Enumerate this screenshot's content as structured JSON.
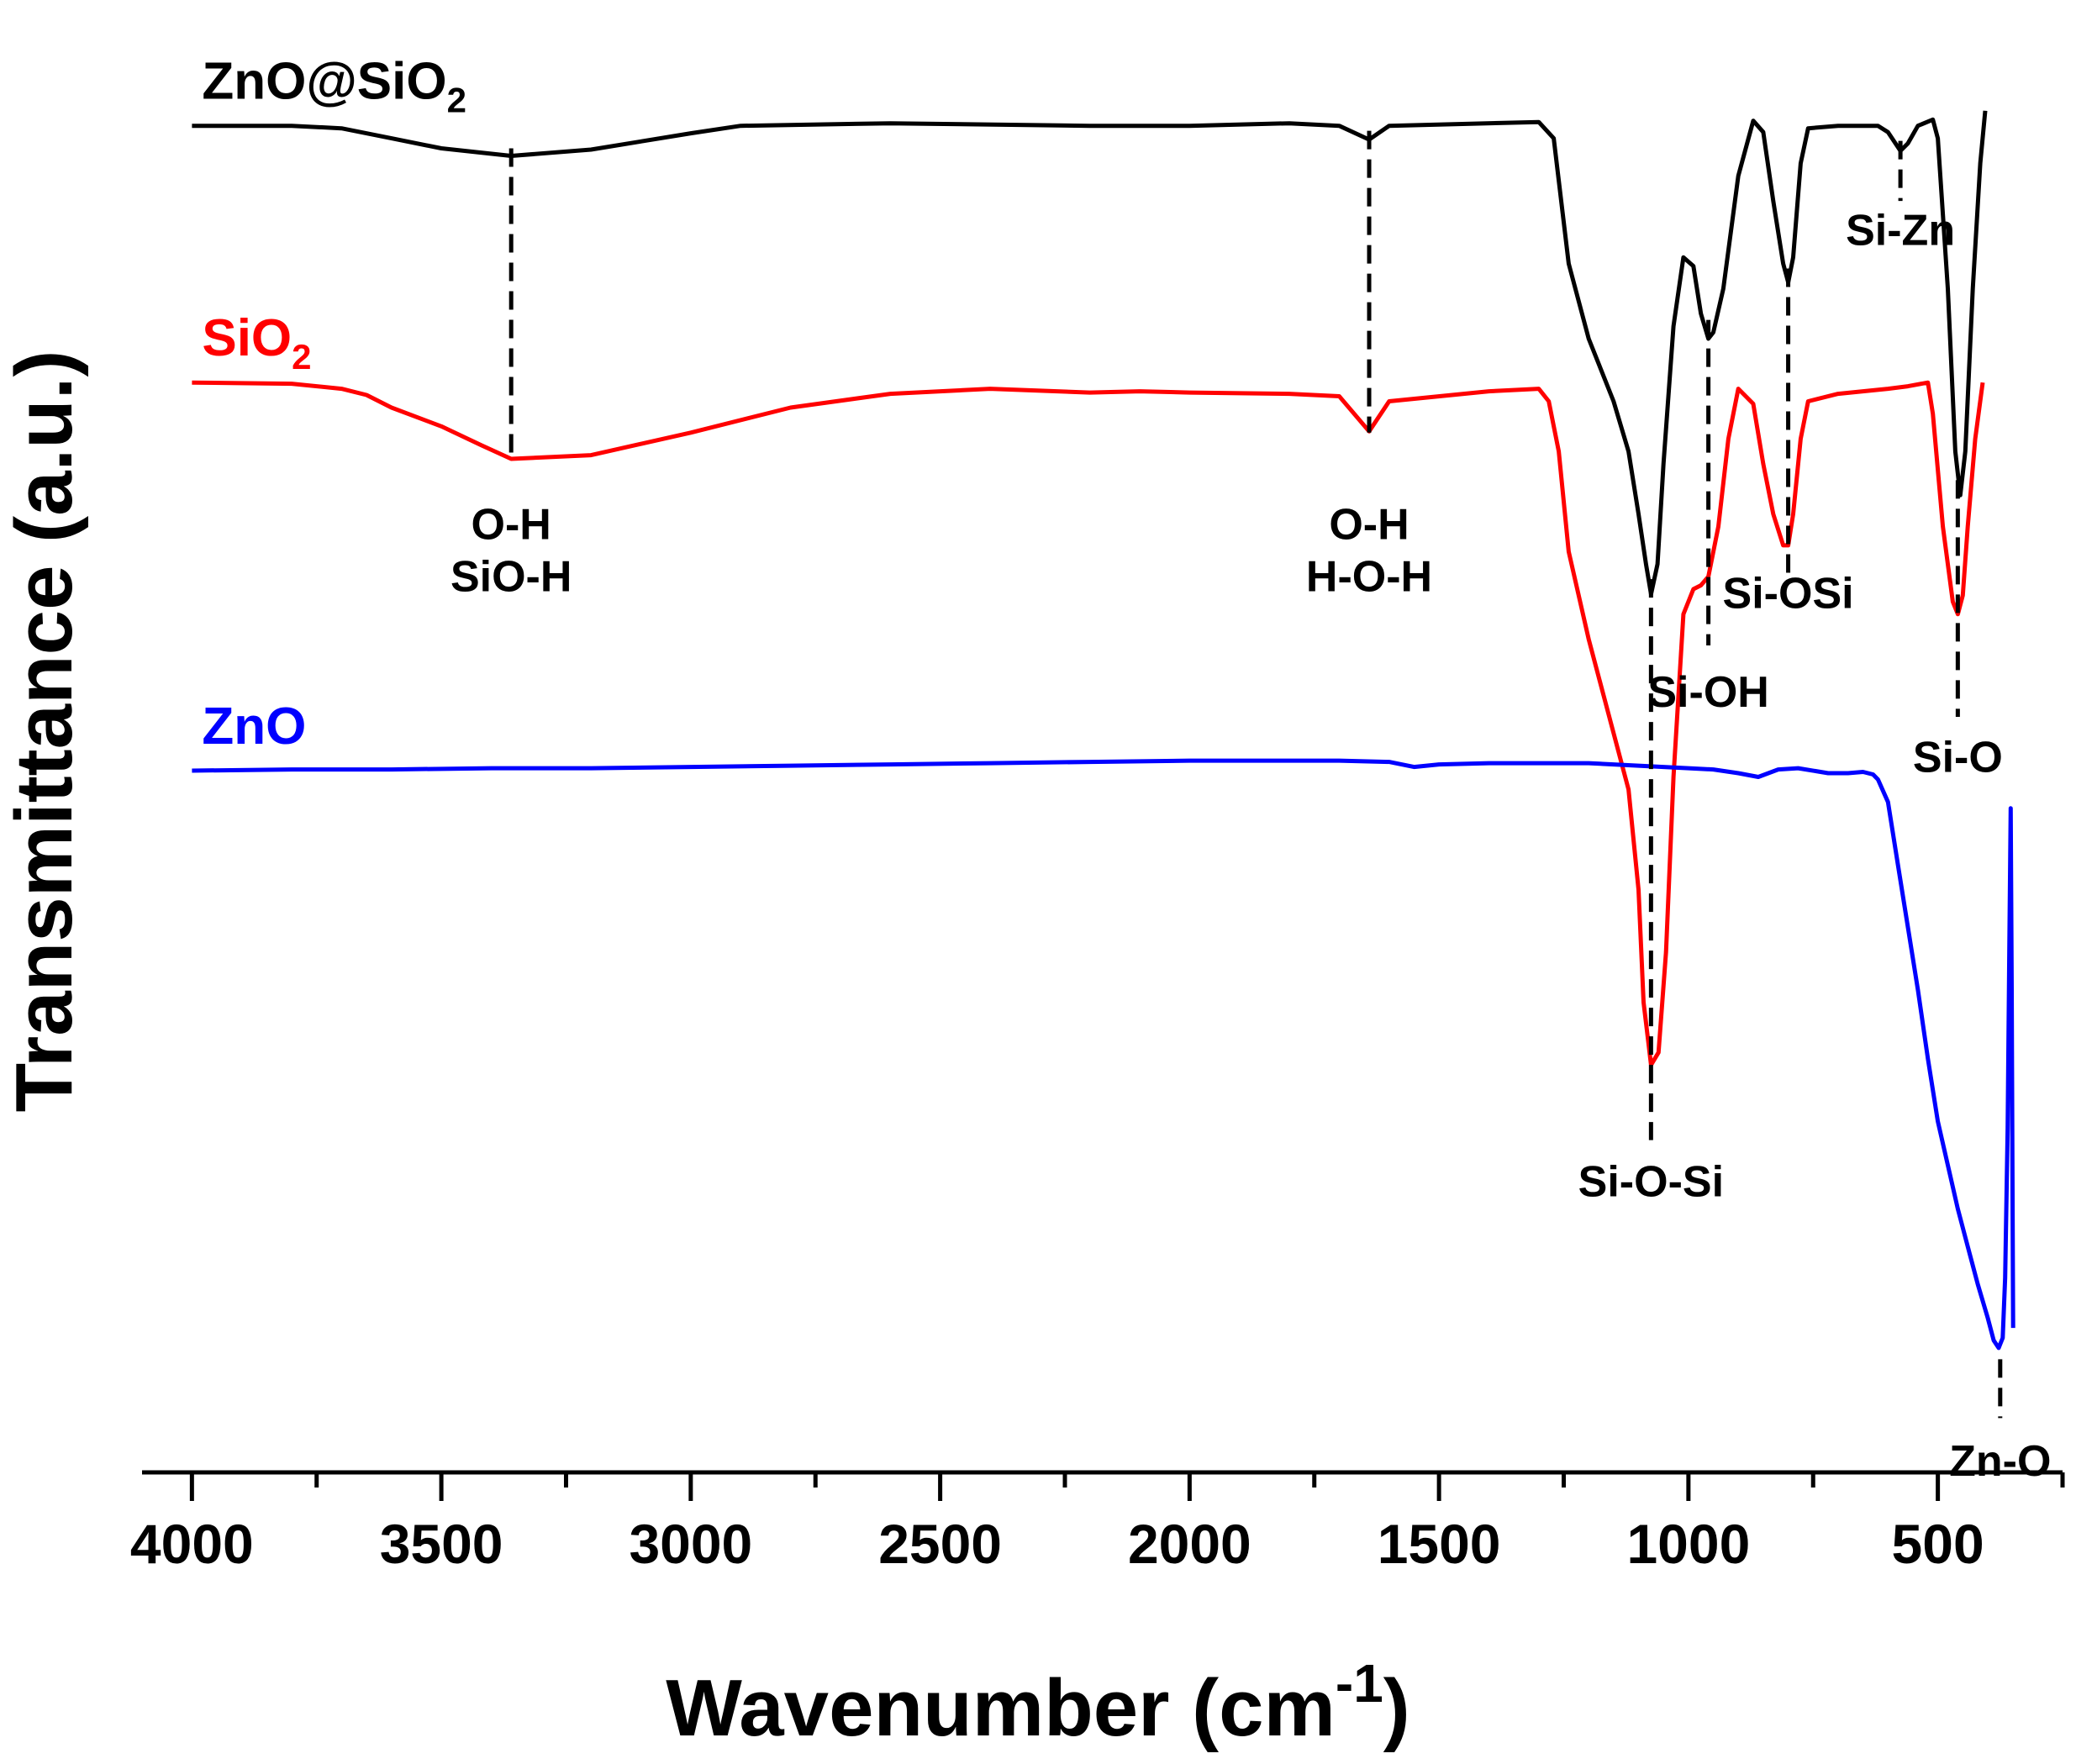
{
  "chart_data": {
    "type": "line",
    "title": "",
    "xlabel": "Wavenumber (cm",
    "xlabel_sup": "-1",
    "xlabel_close": ")",
    "ylabel": "Transmittance (a.u.)",
    "xlim": [
      4100,
      250
    ],
    "ylim": [
      0,
      100
    ],
    "x_ticks": [
      4000,
      3500,
      3000,
      2500,
      2000,
      1500,
      1000,
      500
    ],
    "x_tick_labels": [
      "4000",
      "3500",
      "3000",
      "2500",
      "2000",
      "1500",
      "1000",
      "500"
    ],
    "x_minor_ticks": [
      3750,
      3250,
      2750,
      2250,
      1750,
      1250,
      750,
      250
    ],
    "grid": false,
    "series": [
      {
        "name": "ZnO@SiO",
        "name_sub": "2",
        "color": "#000000",
        "points": [
          [
            4000,
            97
          ],
          [
            3800,
            97
          ],
          [
            3700,
            96.8
          ],
          [
            3600,
            96
          ],
          [
            3500,
            95.2
          ],
          [
            3360,
            94.6
          ],
          [
            3200,
            95.1
          ],
          [
            3000,
            96.4
          ],
          [
            2900,
            97
          ],
          [
            2600,
            97.2
          ],
          [
            2200,
            97
          ],
          [
            2000,
            97
          ],
          [
            1800,
            97.2
          ],
          [
            1700,
            97
          ],
          [
            1640,
            95.9
          ],
          [
            1600,
            97
          ],
          [
            1300,
            97.3
          ],
          [
            1270,
            96
          ],
          [
            1240,
            86
          ],
          [
            1200,
            80
          ],
          [
            1150,
            75
          ],
          [
            1120,
            71
          ],
          [
            1100,
            66
          ],
          [
            1085,
            62
          ],
          [
            1075,
            59.6
          ],
          [
            1062,
            62
          ],
          [
            1050,
            70
          ],
          [
            1030,
            81
          ],
          [
            1010,
            86.5
          ],
          [
            990,
            85.8
          ],
          [
            975,
            82
          ],
          [
            960,
            80
          ],
          [
            950,
            80.5
          ],
          [
            930,
            84
          ],
          [
            900,
            93
          ],
          [
            870,
            97.4
          ],
          [
            850,
            96.5
          ],
          [
            830,
            91
          ],
          [
            810,
            86
          ],
          [
            800,
            84.5
          ],
          [
            790,
            86.5
          ],
          [
            775,
            94
          ],
          [
            760,
            96.8
          ],
          [
            700,
            97
          ],
          [
            620,
            97
          ],
          [
            600,
            96.5
          ],
          [
            575,
            95
          ],
          [
            560,
            95.6
          ],
          [
            540,
            97
          ],
          [
            510,
            97.5
          ],
          [
            500,
            96
          ],
          [
            480,
            84
          ],
          [
            465,
            71
          ],
          [
            455,
            67.5
          ],
          [
            445,
            71
          ],
          [
            430,
            84
          ],
          [
            415,
            94
          ],
          [
            405,
            98.2
          ]
        ]
      },
      {
        "name": "SiO",
        "name_sub": "2",
        "color": "#ff0000",
        "points": [
          [
            4000,
            76.5
          ],
          [
            3800,
            76.4
          ],
          [
            3700,
            76
          ],
          [
            3650,
            75.5
          ],
          [
            3600,
            74.5
          ],
          [
            3500,
            73
          ],
          [
            3420,
            71.5
          ],
          [
            3360,
            70.4
          ],
          [
            3200,
            70.7
          ],
          [
            3000,
            72.5
          ],
          [
            2800,
            74.5
          ],
          [
            2600,
            75.6
          ],
          [
            2400,
            76
          ],
          [
            2200,
            75.7
          ],
          [
            2100,
            75.8
          ],
          [
            2000,
            75.7
          ],
          [
            1800,
            75.6
          ],
          [
            1700,
            75.4
          ],
          [
            1640,
            72.6
          ],
          [
            1600,
            75
          ],
          [
            1400,
            75.8
          ],
          [
            1300,
            76
          ],
          [
            1280,
            75
          ],
          [
            1260,
            71
          ],
          [
            1240,
            63
          ],
          [
            1200,
            56
          ],
          [
            1160,
            50
          ],
          [
            1120,
            44
          ],
          [
            1100,
            36
          ],
          [
            1090,
            27
          ],
          [
            1075,
            22
          ],
          [
            1060,
            23
          ],
          [
            1045,
            31
          ],
          [
            1030,
            45
          ],
          [
            1010,
            58
          ],
          [
            990,
            60
          ],
          [
            975,
            60.3
          ],
          [
            960,
            61
          ],
          [
            940,
            65
          ],
          [
            920,
            72
          ],
          [
            900,
            76
          ],
          [
            870,
            74.8
          ],
          [
            850,
            70
          ],
          [
            830,
            66
          ],
          [
            810,
            63.5
          ],
          [
            800,
            63.5
          ],
          [
            790,
            66
          ],
          [
            775,
            72
          ],
          [
            760,
            75
          ],
          [
            700,
            75.6
          ],
          [
            600,
            76
          ],
          [
            560,
            76.2
          ],
          [
            520,
            76.5
          ],
          [
            510,
            74
          ],
          [
            490,
            65
          ],
          [
            470,
            59
          ],
          [
            460,
            58
          ],
          [
            450,
            59.5
          ],
          [
            440,
            65
          ],
          [
            425,
            72
          ],
          [
            410,
            76.5
          ]
        ]
      },
      {
        "name": "ZnO",
        "name_sub": "",
        "color": "#0000ff",
        "points": [
          [
            4000,
            45.5
          ],
          [
            3800,
            45.6
          ],
          [
            3600,
            45.6
          ],
          [
            3400,
            45.7
          ],
          [
            3200,
            45.7
          ],
          [
            3000,
            45.8
          ],
          [
            2800,
            45.9
          ],
          [
            2600,
            46
          ],
          [
            2400,
            46.1
          ],
          [
            2200,
            46.2
          ],
          [
            2000,
            46.3
          ],
          [
            1800,
            46.3
          ],
          [
            1700,
            46.3
          ],
          [
            1600,
            46.2
          ],
          [
            1550,
            45.8
          ],
          [
            1500,
            46
          ],
          [
            1400,
            46.1
          ],
          [
            1300,
            46.1
          ],
          [
            1200,
            46.1
          ],
          [
            1100,
            45.9
          ],
          [
            1000,
            45.7
          ],
          [
            950,
            45.6
          ],
          [
            900,
            45.3
          ],
          [
            860,
            45
          ],
          [
            820,
            45.6
          ],
          [
            780,
            45.7
          ],
          [
            720,
            45.3
          ],
          [
            680,
            45.3
          ],
          [
            650,
            45.4
          ],
          [
            630,
            45.2
          ],
          [
            620,
            44.8
          ],
          [
            600,
            43
          ],
          [
            580,
            38
          ],
          [
            560,
            33
          ],
          [
            540,
            28
          ],
          [
            520,
            22.5
          ],
          [
            500,
            17.5
          ],
          [
            480,
            14
          ],
          [
            460,
            10.5
          ],
          [
            440,
            7.5
          ],
          [
            420,
            4.5
          ],
          [
            400,
            1.8
          ],
          [
            388,
            0
          ],
          [
            378,
            -0.6
          ],
          [
            370,
            0.2
          ],
          [
            365,
            5
          ],
          [
            360,
            17
          ],
          [
            357,
            30
          ],
          [
            354,
            42.5
          ],
          [
            352,
            28
          ],
          [
            350,
            10
          ],
          [
            349,
            1
          ]
        ]
      }
    ],
    "annotations": [
      {
        "lines": [
          "O-H",
          "SiO-H"
        ],
        "x": 3360,
        "line_from": 95.2,
        "line_to": 70.6,
        "label_y": 64
      },
      {
        "lines": [
          "O-H",
          "H-O-H"
        ],
        "x": 1640,
        "line_from": 96.6,
        "line_to": 72.5,
        "label_y": 64
      },
      {
        "lines": [
          "Si-O-Si"
        ],
        "x": 1075,
        "line_from": 60.8,
        "line_to": 16,
        "label_y": 11.5
      },
      {
        "lines": [
          "Si-OH"
        ],
        "x": 960,
        "line_from": 81.5,
        "line_to": 55.5,
        "label_y": 50.6
      },
      {
        "lines": [
          "Si-OSi"
        ],
        "x": 800,
        "line_from": 85.6,
        "line_to": 61.2,
        "label_y": 58.5
      },
      {
        "lines": [
          "Si-Zn"
        ],
        "x": 575,
        "line_from": 95.8,
        "line_to": 91,
        "label_y": 87.5
      },
      {
        "lines": [
          "Si-O"
        ],
        "x": 460,
        "line_from": 68.7,
        "line_to": 49.8,
        "label_y": 45.4
      },
      {
        "lines": [
          "Zn-O"
        ],
        "x": 375,
        "line_from": -1.5,
        "line_to": -6.2,
        "label_y": -10.8
      }
    ]
  }
}
